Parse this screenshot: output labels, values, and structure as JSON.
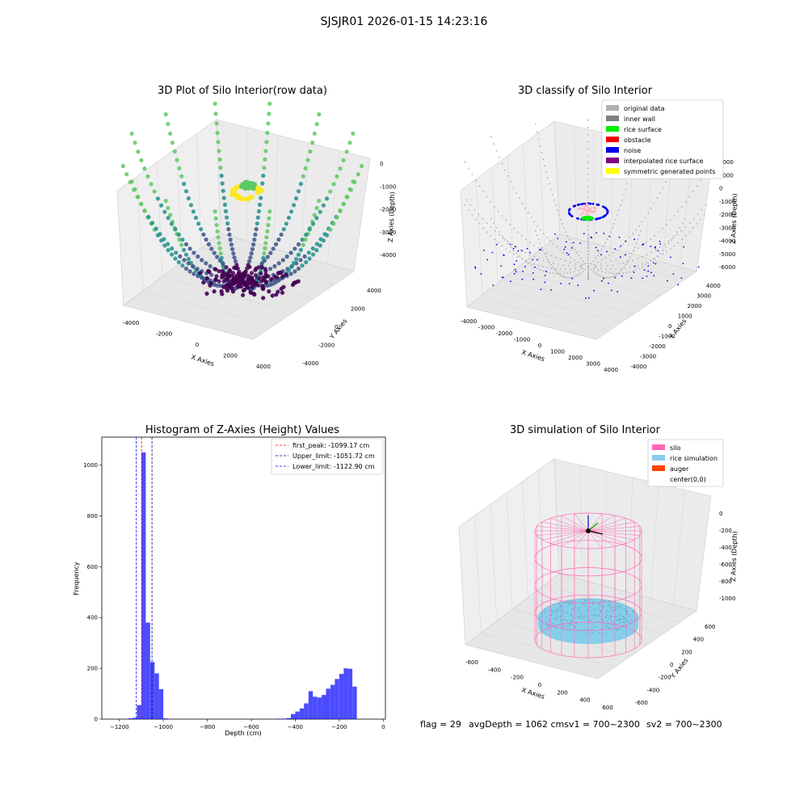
{
  "suptitle": "SJSJR01 2026-01-15 14:23:16",
  "footer": {
    "flag": "flag = 29",
    "avg": "avgDepth = 1062 cmsv1 = 700~2300",
    "sv2": "sv2 = 700~2300"
  },
  "chart_data": [
    {
      "type": "scatter",
      "title": "3D Plot of Silo Interior(row data)",
      "xlabel": "X Axies",
      "ylabel": "Y Axies",
      "zlabel": "Z Axies (Depth)",
      "xticks": [
        "-4000",
        "-2000",
        "0",
        "2000",
        "4000"
      ],
      "yticks": [
        "-4000",
        "-2000",
        "0",
        "2000",
        "4000"
      ],
      "zticks": [
        "0",
        "-1000",
        "-2000",
        "-3000",
        "-4000"
      ],
      "colormap": [
        "#440154",
        "#3b528b",
        "#21918c",
        "#5ec962",
        "#fde725"
      ]
    },
    {
      "type": "scatter",
      "title": "3D classify of Silo Interior",
      "xlabel": "X Axies",
      "ylabel": "Y Axies",
      "zlabel": "Z Axies (Depth)",
      "xticks": [
        "-4000",
        "-3000",
        "-2000",
        "-1000",
        "0",
        "1000",
        "2000",
        "3000",
        "4000"
      ],
      "yticks": [
        "-4000",
        "-3000",
        "-2000",
        "-1000",
        "0",
        "1000",
        "2000",
        "3000",
        "4000"
      ],
      "zticks": [
        "2000",
        "1000",
        "0",
        "-1000",
        "-2000",
        "-3000",
        "-4000",
        "-5000",
        "-6000"
      ],
      "legend": [
        {
          "label": "original data",
          "color": "#b0b0b0"
        },
        {
          "label": "inner wall",
          "color": "#808080"
        },
        {
          "label": "rice surface",
          "color": "#00ee00"
        },
        {
          "label": "obstacle",
          "color": "#ee0000"
        },
        {
          "label": "noise",
          "color": "#0000ee"
        },
        {
          "label": "interpolated rice surface",
          "color": "#800080"
        },
        {
          "label": "symmetric generated points",
          "color": "#ffff00"
        }
      ],
      "legend_position": "top-right"
    },
    {
      "type": "bar",
      "title": "Histogram of Z-Axies (Height) Values",
      "xlabel": "Depth (cm)",
      "ylabel": "Frequency",
      "xlim": [
        -1280,
        10
      ],
      "ylim": [
        0,
        1110
      ],
      "xticks": [
        -1200,
        -1000,
        -800,
        -600,
        -400,
        -200,
        0
      ],
      "yticks": [
        0,
        200,
        400,
        600,
        800,
        1000
      ],
      "bar_color": "#0000ff",
      "bin_width": 20,
      "bins": [
        {
          "x": -1160,
          "v": 3
        },
        {
          "x": -1140,
          "v": 5
        },
        {
          "x": -1120,
          "v": 55
        },
        {
          "x": -1100,
          "v": 1050
        },
        {
          "x": -1080,
          "v": 380
        },
        {
          "x": -1060,
          "v": 225
        },
        {
          "x": -1040,
          "v": 180
        },
        {
          "x": -1020,
          "v": 118
        },
        {
          "x": -1000,
          "v": 3
        },
        {
          "x": -480,
          "v": 2
        },
        {
          "x": -460,
          "v": 2
        },
        {
          "x": -440,
          "v": 4
        },
        {
          "x": -420,
          "v": 20
        },
        {
          "x": -400,
          "v": 30
        },
        {
          "x": -380,
          "v": 42
        },
        {
          "x": -360,
          "v": 62
        },
        {
          "x": -340,
          "v": 110
        },
        {
          "x": -320,
          "v": 88
        },
        {
          "x": -300,
          "v": 85
        },
        {
          "x": -280,
          "v": 95
        },
        {
          "x": -260,
          "v": 120
        },
        {
          "x": -240,
          "v": 135
        },
        {
          "x": -220,
          "v": 158
        },
        {
          "x": -200,
          "v": 178
        },
        {
          "x": -180,
          "v": 200
        },
        {
          "x": -160,
          "v": 198
        },
        {
          "x": -140,
          "v": 128
        }
      ],
      "lines": [
        {
          "label": "first_peak: -1099.17 cm",
          "value": -1099.17,
          "color": "#ff0000"
        },
        {
          "label": "Upper_limit: -1051.72 cm",
          "value": -1051.72,
          "color": "#00008b"
        },
        {
          "label": "Lower_limit: -1122.90 cm",
          "value": -1122.9,
          "color": "#0000ff"
        }
      ],
      "legend_position": "top-right"
    },
    {
      "type": "scatter",
      "title": "3D simulation of Silo Interior",
      "xlabel": "X Axies",
      "ylabel": "Y Axies",
      "zlabel": "Z Axies (Depth)",
      "xticks": [
        "-600",
        "-400",
        "-200",
        "0",
        "200",
        "400",
        "600"
      ],
      "yticks": [
        "600",
        "400",
        "200",
        "0",
        "-200",
        "-400",
        "-600"
      ],
      "zticks": [
        "0",
        "-200",
        "-400",
        "-600",
        "-800",
        "-1000"
      ],
      "legend": [
        {
          "label": "silo",
          "color": "#ff69b4"
        },
        {
          "label": "rice simulation",
          "color": "#87ceeb"
        },
        {
          "label": "auger",
          "color": "#ff4500"
        },
        {
          "label": "center(0,0)",
          "color": ""
        }
      ],
      "legend_position": "top-right"
    }
  ]
}
